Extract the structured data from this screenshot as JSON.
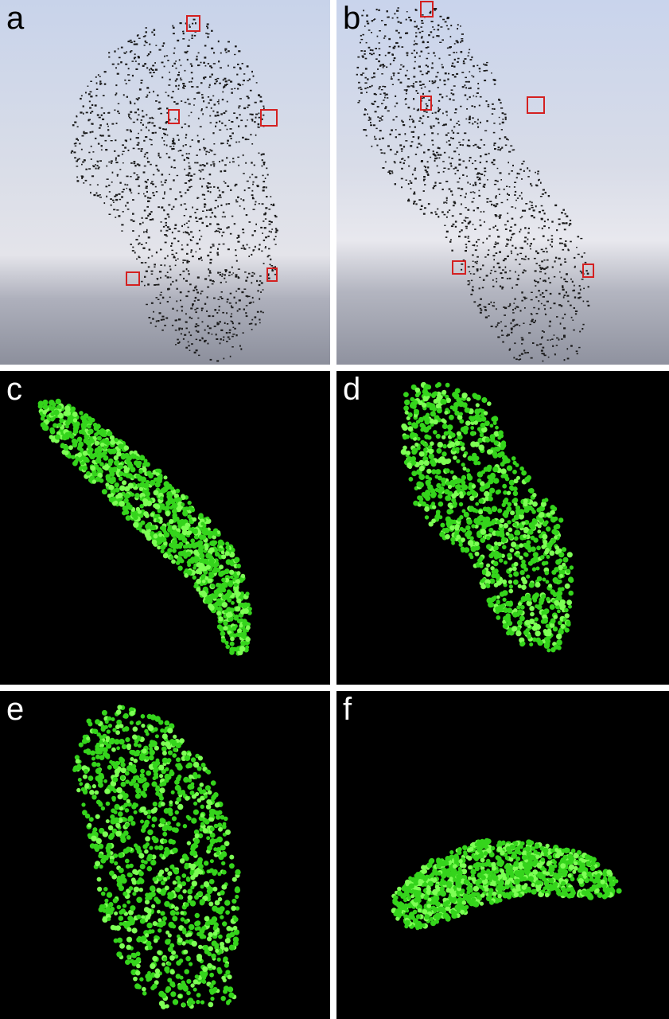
{
  "figure": {
    "panels": [
      {
        "id": "a",
        "label": "a",
        "kind": "photograph",
        "marker_count": 5
      },
      {
        "id": "b",
        "label": "b",
        "kind": "photograph",
        "marker_count": 5
      },
      {
        "id": "c",
        "label": "c",
        "kind": "3d-reconstruction"
      },
      {
        "id": "d",
        "label": "d",
        "kind": "3d-reconstruction"
      },
      {
        "id": "e",
        "label": "e",
        "kind": "3d-reconstruction"
      },
      {
        "id": "f",
        "label": "f",
        "kind": "3d-reconstruction"
      }
    ]
  },
  "colors": {
    "sky_top": "#c9d4ea",
    "sky_mid": "#d6dbe6",
    "sky_bottom": "#8f93a0",
    "bird": "#1a1a1a",
    "marker": "#d42020",
    "sphere": "#35d41c",
    "sphere_highlight": "#7dff55",
    "background_render": "#000000",
    "divider": "#ffffff"
  }
}
